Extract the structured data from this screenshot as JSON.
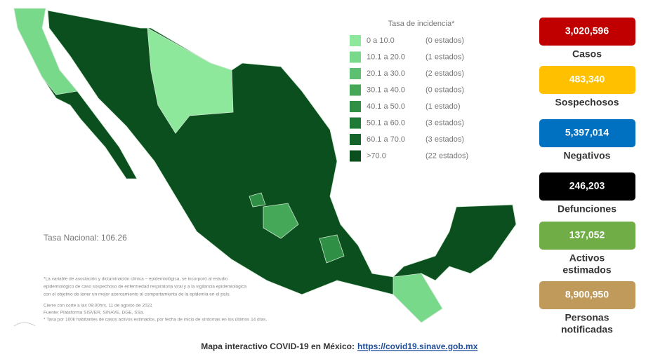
{
  "legend": {
    "title": "Tasa de incidencia*",
    "items": [
      {
        "range": "0    a  10.0",
        "count": "(0 estados)",
        "color": "#8ee89b"
      },
      {
        "range": "10.1  a  20.0",
        "count": "(1 estados)",
        "color": "#78d98a"
      },
      {
        "range": "20.1  a  30.0",
        "count": "(2 estados)",
        "color": "#5cc070"
      },
      {
        "range": "30.1  a  40.0",
        "count": "(0 estados)",
        "color": "#44a858"
      },
      {
        "range": "40.1  a  50.0",
        "count": "(1 estado)",
        "color": "#2f8f44"
      },
      {
        "range": "50.1  a  60.0",
        "count": "(3 estados)",
        "color": "#1f7a35"
      },
      {
        "range": "60.1  a  70.0",
        "count": "(3 estados)",
        "color": "#15652a"
      },
      {
        "range": ">70.0",
        "count": "(22 estados)",
        "color": "#0b4f1e"
      }
    ]
  },
  "national_rate": "Tasa Nacional: 106.26",
  "footnotes": [
    "*La variable de asociación y dictaminación clínica – epidemiológica, se incorporó al estudio",
    "epidemiológico de caso sospechoso de enfermedad respiratoria viral y a la vigilancia epidemiológica",
    "con el objetivo de tener un mejor acercamiento al comportamiento de la epidemia en el país.",
    "Cierre con corte a las 09:00hrs, 11 de agosto de 2021",
    "Fuente: Plataforma SISVER, SINAVE, DGE, SSa.",
    "* Tasa por 100k habitantes de casos activos estimados, por fecha de inicio de síntomas en los últimos 14 días."
  ],
  "stats": [
    {
      "value": "3,020,596",
      "label": [
        "Casos"
      ],
      "color": "#c00000"
    },
    {
      "value": "483,340",
      "label": [
        "Sospechosos"
      ],
      "color": "#ffc000"
    },
    {
      "value": "5,397,014",
      "label": [
        "Negativos"
      ],
      "color": "#0070c0"
    },
    {
      "value": "246,203",
      "label": [
        "Defunciones"
      ],
      "color": "#000000"
    },
    {
      "value": "137,052",
      "label": [
        "Activos",
        "estimados"
      ],
      "color": "#70ad47"
    },
    {
      "value": "8,900,950",
      "label": [
        "Personas",
        "notificadas"
      ],
      "color": "#c09a5b"
    }
  ],
  "footer": {
    "text": "Mapa interactivo COVID-19 en México:",
    "link": "https://covid19.sinave.gob.mx"
  }
}
